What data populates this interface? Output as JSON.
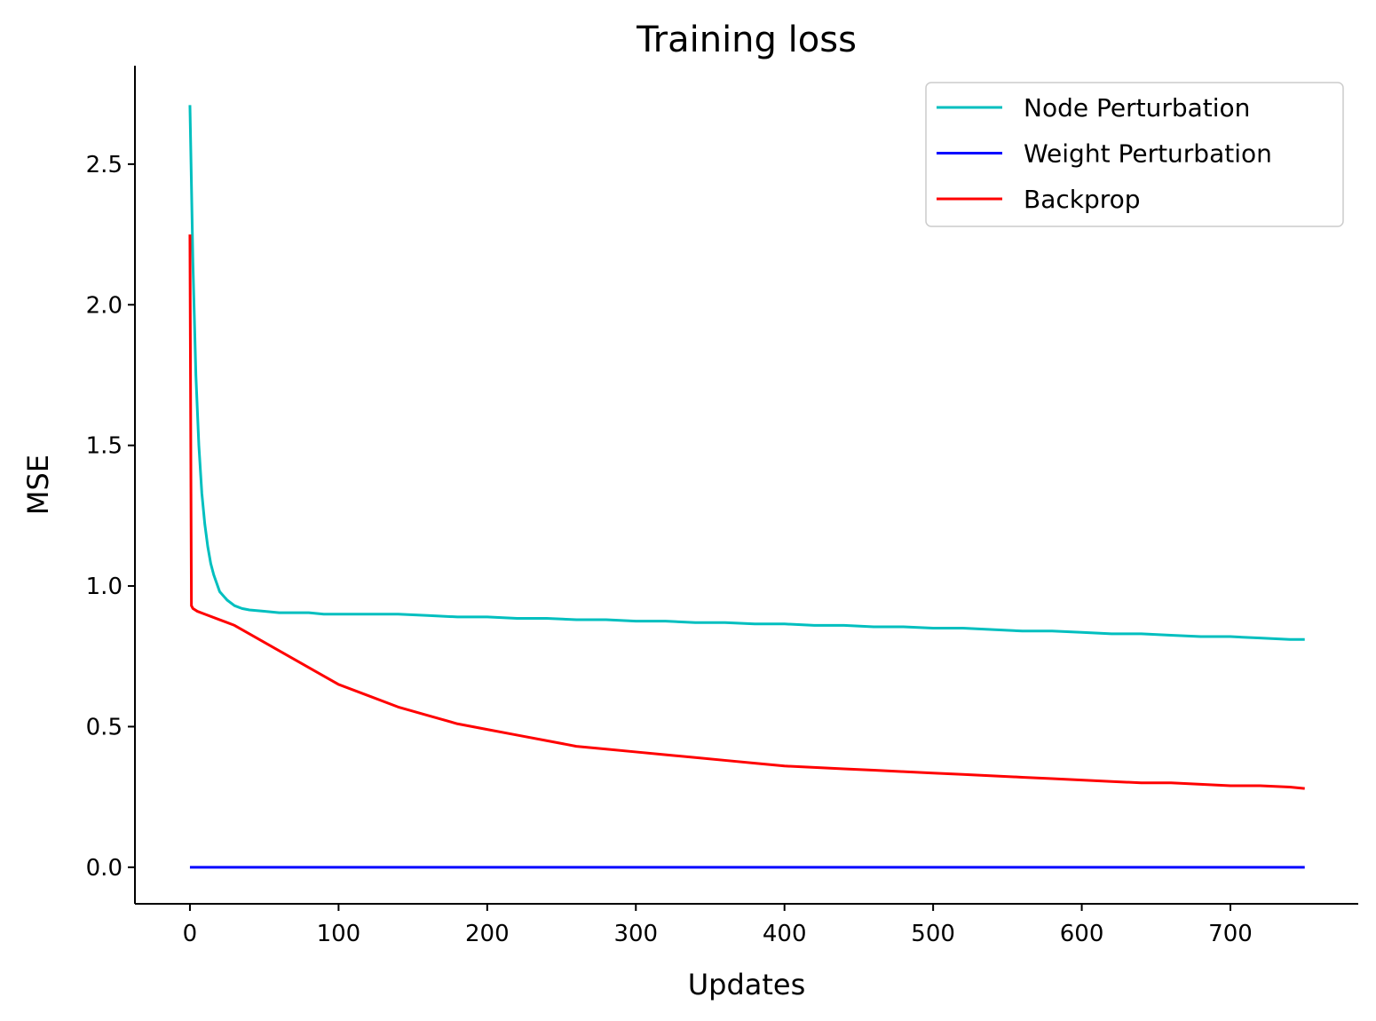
{
  "chart_data": {
    "type": "line",
    "title": "Training loss",
    "xlabel": "Updates",
    "ylabel": "MSE",
    "xlim": [
      -37,
      786
    ],
    "ylim": [
      -0.13,
      2.85
    ],
    "xticks": [
      0,
      100,
      200,
      300,
      400,
      500,
      600,
      700
    ],
    "yticks": [
      0.0,
      0.5,
      1.0,
      1.5,
      2.0,
      2.5
    ],
    "xtick_labels": [
      "0",
      "100",
      "200",
      "300",
      "400",
      "500",
      "600",
      "700"
    ],
    "ytick_labels": [
      "0.0",
      "0.5",
      "1.0",
      "1.5",
      "2.0",
      "2.5"
    ],
    "grid": false,
    "legend_position": "top-right",
    "series": [
      {
        "name": "Node Perturbation",
        "color": "#00bfbf",
        "x": [
          0,
          2,
          4,
          6,
          8,
          10,
          12,
          14,
          16,
          18,
          20,
          25,
          30,
          35,
          40,
          50,
          60,
          70,
          80,
          90,
          100,
          120,
          140,
          160,
          180,
          200,
          220,
          240,
          260,
          280,
          300,
          320,
          340,
          360,
          380,
          400,
          420,
          440,
          460,
          480,
          500,
          520,
          540,
          560,
          580,
          600,
          620,
          640,
          660,
          680,
          700,
          720,
          740,
          750
        ],
        "y": [
          2.71,
          2.15,
          1.75,
          1.5,
          1.33,
          1.22,
          1.14,
          1.08,
          1.04,
          1.01,
          0.98,
          0.95,
          0.93,
          0.92,
          0.915,
          0.91,
          0.905,
          0.905,
          0.905,
          0.9,
          0.9,
          0.9,
          0.9,
          0.895,
          0.89,
          0.89,
          0.885,
          0.885,
          0.88,
          0.88,
          0.875,
          0.875,
          0.87,
          0.87,
          0.865,
          0.865,
          0.86,
          0.86,
          0.855,
          0.855,
          0.85,
          0.85,
          0.845,
          0.84,
          0.84,
          0.835,
          0.83,
          0.83,
          0.825,
          0.82,
          0.82,
          0.815,
          0.81,
          0.81
        ]
      },
      {
        "name": "Weight Perturbation",
        "color": "#0000ff",
        "x": [
          0,
          750
        ],
        "y": [
          0.0,
          0.0
        ]
      },
      {
        "name": "Backprop",
        "color": "#ff0000",
        "x": [
          0,
          1,
          2,
          5,
          10,
          20,
          30,
          40,
          50,
          60,
          70,
          80,
          90,
          100,
          120,
          140,
          160,
          180,
          200,
          220,
          240,
          260,
          280,
          300,
          320,
          340,
          360,
          380,
          400,
          420,
          440,
          460,
          480,
          500,
          520,
          540,
          560,
          580,
          600,
          620,
          640,
          660,
          680,
          700,
          720,
          740,
          750
        ],
        "y": [
          2.25,
          0.93,
          0.92,
          0.91,
          0.9,
          0.88,
          0.86,
          0.83,
          0.8,
          0.77,
          0.74,
          0.71,
          0.68,
          0.65,
          0.61,
          0.57,
          0.54,
          0.51,
          0.49,
          0.47,
          0.45,
          0.43,
          0.42,
          0.41,
          0.4,
          0.39,
          0.38,
          0.37,
          0.36,
          0.355,
          0.35,
          0.345,
          0.34,
          0.335,
          0.33,
          0.325,
          0.32,
          0.315,
          0.31,
          0.305,
          0.3,
          0.3,
          0.295,
          0.29,
          0.29,
          0.285,
          0.28
        ]
      }
    ]
  }
}
